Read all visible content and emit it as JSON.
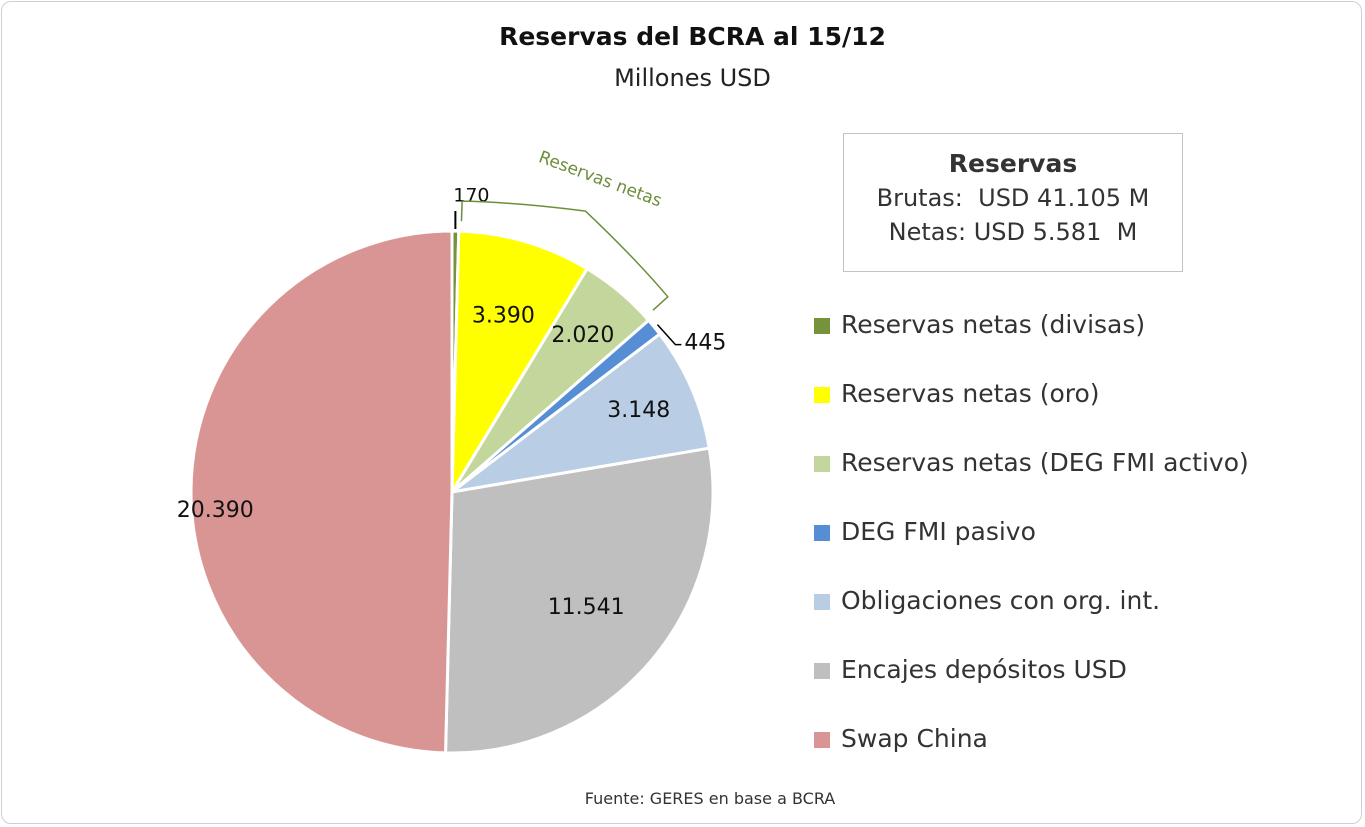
{
  "chart_data": {
    "type": "pie",
    "title": "Reservas del BCRA al 15/12",
    "subtitle": "Millones USD",
    "start_angle_deg": 0,
    "direction": "clockwise",
    "slices": [
      {
        "name": "Reservas netas (divisas)",
        "value": 170,
        "label": "170",
        "color": "#76923c"
      },
      {
        "name": "Reservas netas (oro)",
        "value": 3390,
        "label": "3.390",
        "color": "#ffff00"
      },
      {
        "name": "Reservas netas (DEG FMI activo)",
        "value": 2020,
        "label": "2.020",
        "color": "#c3d69b"
      },
      {
        "name": "DEG FMI pasivo",
        "value": 445,
        "label": "445",
        "color": "#558ed5"
      },
      {
        "name": "Obligaciones con org. int.",
        "value": 3148,
        "label": "3.148",
        "color": "#b9cde5"
      },
      {
        "name": "Encajes depósitos USD",
        "value": 11541,
        "label": "11.541",
        "color": "#bfbfbf"
      },
      {
        "name": "Swap China",
        "value": 20390,
        "label": "20.390",
        "color": "#d99594"
      }
    ],
    "annotation": {
      "text": "Reservas netas",
      "color": "#6b8e3a"
    },
    "summary": {
      "heading": "Reservas",
      "line1": "Brutas:  USD 41.105 M",
      "line2": "Netas: USD 5.581  M"
    },
    "source": "Fuente: GERES en base a BCRA"
  }
}
